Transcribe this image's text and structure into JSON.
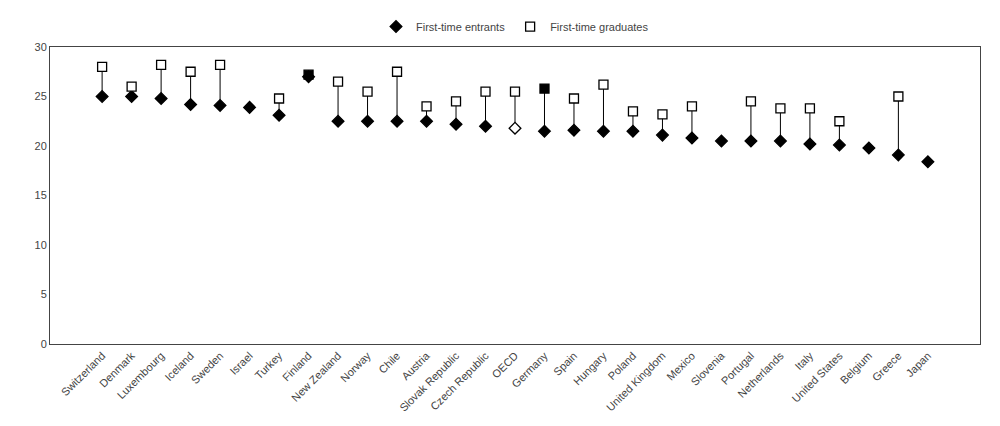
{
  "chart_data": {
    "type": "dumbbell",
    "categories": [
      "Switzerland",
      "Denmark",
      "Luxembourg",
      "Iceland",
      "Sweden",
      "Israel",
      "Turkey",
      "Finland",
      "New Zealand",
      "Norway",
      "Chile",
      "Austria",
      "Slovak Republic",
      "Czech Republic",
      "OECD",
      "Germany",
      "Spain",
      "Hungary",
      "Poland",
      "United Kingdom",
      "Mexico",
      "Slovenia",
      "Portugal",
      "Netherlands",
      "Italy",
      "United States",
      "Belgium",
      "Greece",
      "Japan"
    ],
    "series": [
      {
        "name": "First-time entrants",
        "marker": "diamond",
        "color": "black",
        "colors": [
          "black",
          "black",
          "black",
          "black",
          "black",
          "black",
          "black",
          "black",
          "black",
          "black",
          "black",
          "black",
          "black",
          "black",
          "white",
          "black",
          "black",
          "black",
          "black",
          "black",
          "black",
          "black",
          "black",
          "black",
          "black",
          "black",
          "black",
          "black",
          "black"
        ],
        "values": [
          25.0,
          25.0,
          24.8,
          24.2,
          24.1,
          23.9,
          23.1,
          27.0,
          22.5,
          22.5,
          22.5,
          22.5,
          22.2,
          22.0,
          21.8,
          21.5,
          21.6,
          21.5,
          21.5,
          21.1,
          20.8,
          20.5,
          20.5,
          20.5,
          20.2,
          20.1,
          19.8,
          19.1,
          18.4
        ]
      },
      {
        "name": "First-time graduates",
        "marker": "square",
        "color": "black",
        "colors": [
          "white",
          "white",
          "white",
          "white",
          "white",
          "white",
          "white",
          "black",
          "white",
          "white",
          "white",
          "white",
          "white",
          "white",
          "white",
          "black",
          "white",
          "white",
          "white",
          "white",
          "white",
          "white",
          "white",
          "white",
          "white",
          "white",
          "white",
          "white",
          "white"
        ],
        "values": [
          28.0,
          26.0,
          28.2,
          27.5,
          28.2,
          null,
          24.8,
          27.2,
          26.5,
          25.5,
          27.5,
          24.0,
          24.5,
          25.5,
          25.5,
          25.8,
          24.8,
          26.2,
          23.5,
          23.2,
          24.0,
          null,
          24.5,
          23.8,
          23.8,
          22.5,
          null,
          25.0,
          null
        ]
      }
    ],
    "ylim": [
      0,
      30
    ],
    "yticks": [
      0,
      5,
      10,
      15,
      20,
      25,
      30
    ],
    "grid": false,
    "legend": "top"
  }
}
